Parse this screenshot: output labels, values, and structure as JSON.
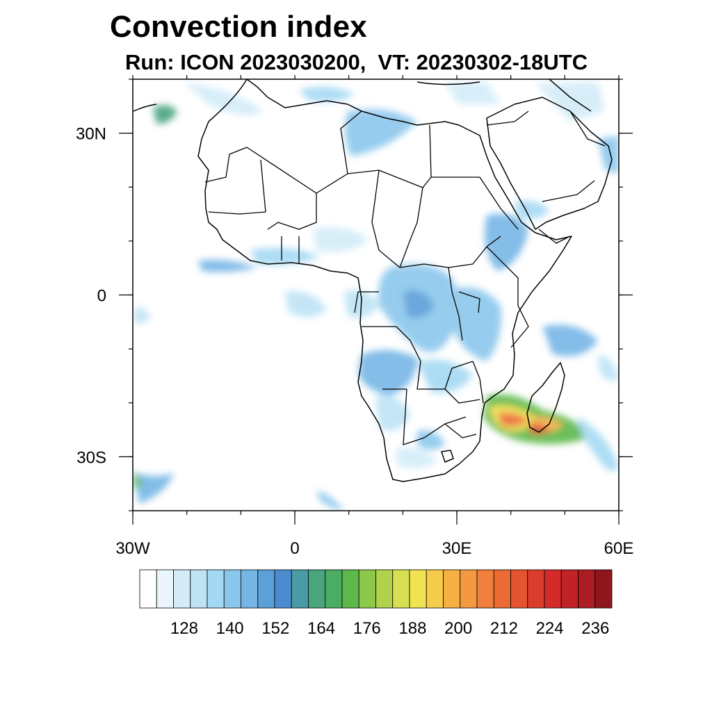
{
  "header": {
    "title": "Convection index",
    "subtitle": "Run: ICON 2023030200,  VT: 20230302-18UTC"
  },
  "map": {
    "lon_ticks": [
      {
        "lon": -30,
        "label": "30W"
      },
      {
        "lon": 0,
        "label": "0"
      },
      {
        "lon": 30,
        "label": "30E"
      },
      {
        "lon": 60,
        "label": "60E"
      }
    ],
    "lat_ticks": [
      {
        "lat": 30,
        "label": "30N"
      },
      {
        "lat": 0,
        "label": "0"
      },
      {
        "lat": -30,
        "label": "30S"
      }
    ],
    "lon_range": [
      -30,
      60
    ],
    "lat_range": [
      -40,
      40
    ]
  },
  "colorbar": {
    "colors": [
      "#ffffff",
      "#eaf6fc",
      "#d3ecf8",
      "#bde3f5",
      "#a4d9f3",
      "#8bc7ec",
      "#76b6e6",
      "#5c9fd9",
      "#4a8ccd",
      "#4a9ba6",
      "#4aa47e",
      "#4aad62",
      "#5cb84a",
      "#8cc84a",
      "#b0d24c",
      "#d6e050",
      "#f0e250",
      "#f6cc4a",
      "#f6b044",
      "#f49940",
      "#f0803c",
      "#ec6a34",
      "#e45430",
      "#dc3c2c",
      "#d42a2a",
      "#c02228",
      "#ac1c22",
      "#8e161c"
    ],
    "labels": [
      "128",
      "140",
      "152",
      "164",
      "176",
      "188",
      "200",
      "212",
      "224",
      "236"
    ],
    "label_box_index": [
      2,
      5,
      8,
      11,
      14,
      17,
      20,
      23,
      26,
      29
    ]
  }
}
